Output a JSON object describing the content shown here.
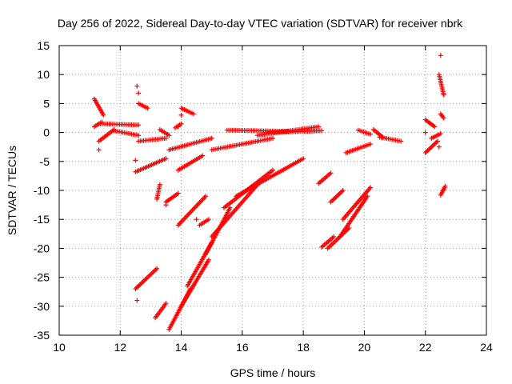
{
  "chart_data": {
    "type": "scatter",
    "title": "Day 256 of 2022, Sidereal Day-to-day VTEC variation (SDTVAR) for receiver nbrk",
    "xlabel": "GPS time / hours",
    "ylabel": "SDTVAR / TECUs",
    "xlim": [
      10,
      24
    ],
    "ylim": [
      -35,
      15
    ],
    "xticks": [
      "10",
      "12",
      "14",
      "16",
      "18",
      "20",
      "22",
      "24"
    ],
    "yticks": [
      "15",
      "10",
      "5",
      "0",
      "-5",
      "-10",
      "-15",
      "-20",
      "-25",
      "-30",
      "-35"
    ],
    "grid": true,
    "marker": "+",
    "color": "#ff0000",
    "segments": [
      {
        "x0": 11.15,
        "y0": 5.8,
        "x1": 11.45,
        "y1": 3.0
      },
      {
        "x0": 11.15,
        "y0": 1.0,
        "x1": 11.4,
        "y1": 1.8
      },
      {
        "x0": 11.3,
        "y0": 1.5,
        "x1": 12.6,
        "y1": 1.3
      },
      {
        "x0": 11.3,
        "y0": -1.5,
        "x1": 11.8,
        "y1": 0.5
      },
      {
        "x0": 11.8,
        "y0": 0.3,
        "x1": 12.6,
        "y1": -0.5
      },
      {
        "x0": 12.6,
        "y0": -1.5,
        "x1": 13.5,
        "y1": -1.0
      },
      {
        "x0": 12.5,
        "y0": -6.8,
        "x1": 13.5,
        "y1": -4.5
      },
      {
        "x0": 12.6,
        "y0": 5.0,
        "x1": 12.9,
        "y1": 4.2
      },
      {
        "x0": 12.5,
        "y0": -27.0,
        "x1": 13.2,
        "y1": -23.5
      },
      {
        "x0": 13.15,
        "y0": -32.0,
        "x1": 13.5,
        "y1": -29.5
      },
      {
        "x0": 13.2,
        "y0": -11.5,
        "x1": 13.3,
        "y1": -9.0
      },
      {
        "x0": 13.3,
        "y0": 0.5,
        "x1": 13.6,
        "y1": -0.5
      },
      {
        "x0": 13.5,
        "y0": -12.0,
        "x1": 13.9,
        "y1": -10.5
      },
      {
        "x0": 13.6,
        "y0": -34.0,
        "x1": 14.3,
        "y1": -27.0
      },
      {
        "x0": 13.6,
        "y0": -3.0,
        "x1": 15.0,
        "y1": -1.0
      },
      {
        "x0": 13.8,
        "y0": 0.8,
        "x1": 14.0,
        "y1": 1.5
      },
      {
        "x0": 13.9,
        "y0": -16.0,
        "x1": 14.8,
        "y1": -11.0
      },
      {
        "x0": 13.9,
        "y0": -6.5,
        "x1": 14.7,
        "y1": -4.0
      },
      {
        "x0": 14.0,
        "y0": 4.2,
        "x1": 14.4,
        "y1": 3.2
      },
      {
        "x0": 14.0,
        "y0": -30.0,
        "x1": 14.9,
        "y1": -22.0
      },
      {
        "x0": 14.2,
        "y0": -26.5,
        "x1": 15.0,
        "y1": -19.0
      },
      {
        "x0": 14.6,
        "y0": -16.0,
        "x1": 14.9,
        "y1": -15.0
      },
      {
        "x0": 14.8,
        "y0": -21.0,
        "x1": 15.6,
        "y1": -13.0
      },
      {
        "x0": 15.0,
        "y0": -3.0,
        "x1": 17.0,
        "y1": -1.0
      },
      {
        "x0": 15.0,
        "y0": -18.0,
        "x1": 16.5,
        "y1": -9.0
      },
      {
        "x0": 15.4,
        "y0": -13.0,
        "x1": 17.0,
        "y1": -6.5
      },
      {
        "x0": 15.8,
        "y0": -11.0,
        "x1": 18.0,
        "y1": -4.5
      },
      {
        "x0": 15.5,
        "y0": 0.4,
        "x1": 17.5,
        "y1": 0.2
      },
      {
        "x0": 16.5,
        "y0": -0.5,
        "x1": 18.5,
        "y1": 1.0
      },
      {
        "x0": 17.0,
        "y0": 0.0,
        "x1": 18.6,
        "y1": 0.3
      },
      {
        "x0": 18.5,
        "y0": -8.8,
        "x1": 18.9,
        "y1": -7.0
      },
      {
        "x0": 18.6,
        "y0": -19.8,
        "x1": 19.0,
        "y1": -18.0
      },
      {
        "x0": 18.9,
        "y0": -12.0,
        "x1": 19.3,
        "y1": -10.0
      },
      {
        "x0": 18.8,
        "y0": -20.0,
        "x1": 19.5,
        "y1": -16.5
      },
      {
        "x0": 19.2,
        "y0": -18.0,
        "x1": 20.1,
        "y1": -11.0
      },
      {
        "x0": 19.3,
        "y0": -15.0,
        "x1": 20.2,
        "y1": -9.5
      },
      {
        "x0": 19.4,
        "y0": -3.5,
        "x1": 20.2,
        "y1": -2.0
      },
      {
        "x0": 19.8,
        "y0": 0.4,
        "x1": 20.2,
        "y1": -0.3
      },
      {
        "x0": 20.3,
        "y0": 0.5,
        "x1": 20.6,
        "y1": -0.8
      },
      {
        "x0": 20.5,
        "y0": -0.8,
        "x1": 21.2,
        "y1": -1.5
      },
      {
        "x0": 22.0,
        "y0": 2.2,
        "x1": 22.3,
        "y1": 1.0
      },
      {
        "x0": 22.0,
        "y0": -3.5,
        "x1": 22.4,
        "y1": -1.5
      },
      {
        "x0": 22.2,
        "y0": -1.0,
        "x1": 22.5,
        "y1": -0.2
      },
      {
        "x0": 22.45,
        "y0": 10.0,
        "x1": 22.6,
        "y1": 6.5
      },
      {
        "x0": 22.5,
        "y0": -10.8,
        "x1": 22.65,
        "y1": -9.3
      },
      {
        "x0": 22.5,
        "y0": 3.2,
        "x1": 22.6,
        "y1": 2.5
      }
    ],
    "points": [
      {
        "x": 12.55,
        "y": 8.0
      },
      {
        "x": 12.6,
        "y": 6.8
      },
      {
        "x": 11.3,
        "y": -3.0
      },
      {
        "x": 12.5,
        "y": -4.8
      },
      {
        "x": 12.55,
        "y": -29.0
      },
      {
        "x": 13.5,
        "y": -12.5
      },
      {
        "x": 14.0,
        "y": 3.0
      },
      {
        "x": 13.9,
        "y": 1.0
      },
      {
        "x": 14.5,
        "y": -15.0
      },
      {
        "x": 22.5,
        "y": 13.3
      },
      {
        "x": 22.45,
        "y": -2.5
      },
      {
        "x": 22.0,
        "y": 0.0
      }
    ]
  }
}
